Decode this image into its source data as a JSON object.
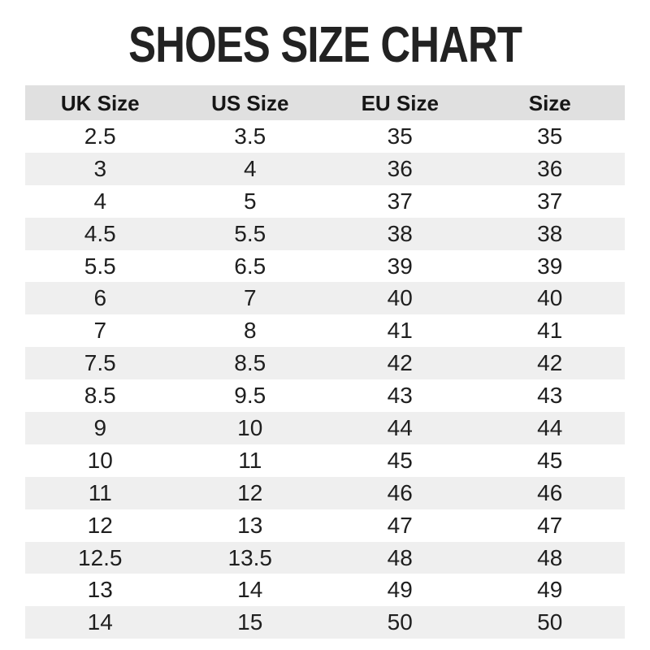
{
  "title": "SHOES SIZE CHART",
  "table": {
    "headers": [
      "UK Size",
      "US Size",
      "EU Size",
      "Size"
    ],
    "rows": [
      [
        "2.5",
        "3.5",
        "35",
        "35"
      ],
      [
        "3",
        "4",
        "36",
        "36"
      ],
      [
        "4",
        "5",
        "37",
        "37"
      ],
      [
        "4.5",
        "5.5",
        "38",
        "38"
      ],
      [
        "5.5",
        "6.5",
        "39",
        "39"
      ],
      [
        "6",
        "7",
        "40",
        "40"
      ],
      [
        "7",
        "8",
        "41",
        "41"
      ],
      [
        "7.5",
        "8.5",
        "42",
        "42"
      ],
      [
        "8.5",
        "9.5",
        "43",
        "43"
      ],
      [
        "9",
        "10",
        "44",
        "44"
      ],
      [
        "10",
        "11",
        "45",
        "45"
      ],
      [
        "11",
        "12",
        "46",
        "46"
      ],
      [
        "12",
        "13",
        "47",
        "47"
      ],
      [
        "12.5",
        "13.5",
        "48",
        "48"
      ],
      [
        "13",
        "14",
        "49",
        "49"
      ],
      [
        "14",
        "15",
        "50",
        "50"
      ]
    ]
  },
  "colors": {
    "header_bg": "#e0e0e0",
    "stripe_bg": "#efefef",
    "text": "#1f1f1f",
    "background": "#ffffff"
  },
  "chart_data": {
    "type": "table",
    "title": "SHOES SIZE CHART",
    "columns": [
      "UK Size",
      "US Size",
      "EU Size",
      "Size"
    ],
    "rows": [
      [
        "2.5",
        "3.5",
        "35",
        "35"
      ],
      [
        "3",
        "4",
        "36",
        "36"
      ],
      [
        "4",
        "5",
        "37",
        "37"
      ],
      [
        "4.5",
        "5.5",
        "38",
        "38"
      ],
      [
        "5.5",
        "6.5",
        "39",
        "39"
      ],
      [
        "6",
        "7",
        "40",
        "40"
      ],
      [
        "7",
        "8",
        "41",
        "41"
      ],
      [
        "7.5",
        "8.5",
        "42",
        "42"
      ],
      [
        "8.5",
        "9.5",
        "43",
        "43"
      ],
      [
        "9",
        "10",
        "44",
        "44"
      ],
      [
        "10",
        "11",
        "45",
        "45"
      ],
      [
        "11",
        "12",
        "46",
        "46"
      ],
      [
        "12",
        "13",
        "47",
        "47"
      ],
      [
        "12.5",
        "13.5",
        "48",
        "48"
      ],
      [
        "13",
        "14",
        "49",
        "49"
      ],
      [
        "14",
        "15",
        "50",
        "50"
      ]
    ],
    "layout": {
      "zebra_striping": true,
      "header_background": "#e0e0e0",
      "stripe_background": "#efefef"
    }
  }
}
